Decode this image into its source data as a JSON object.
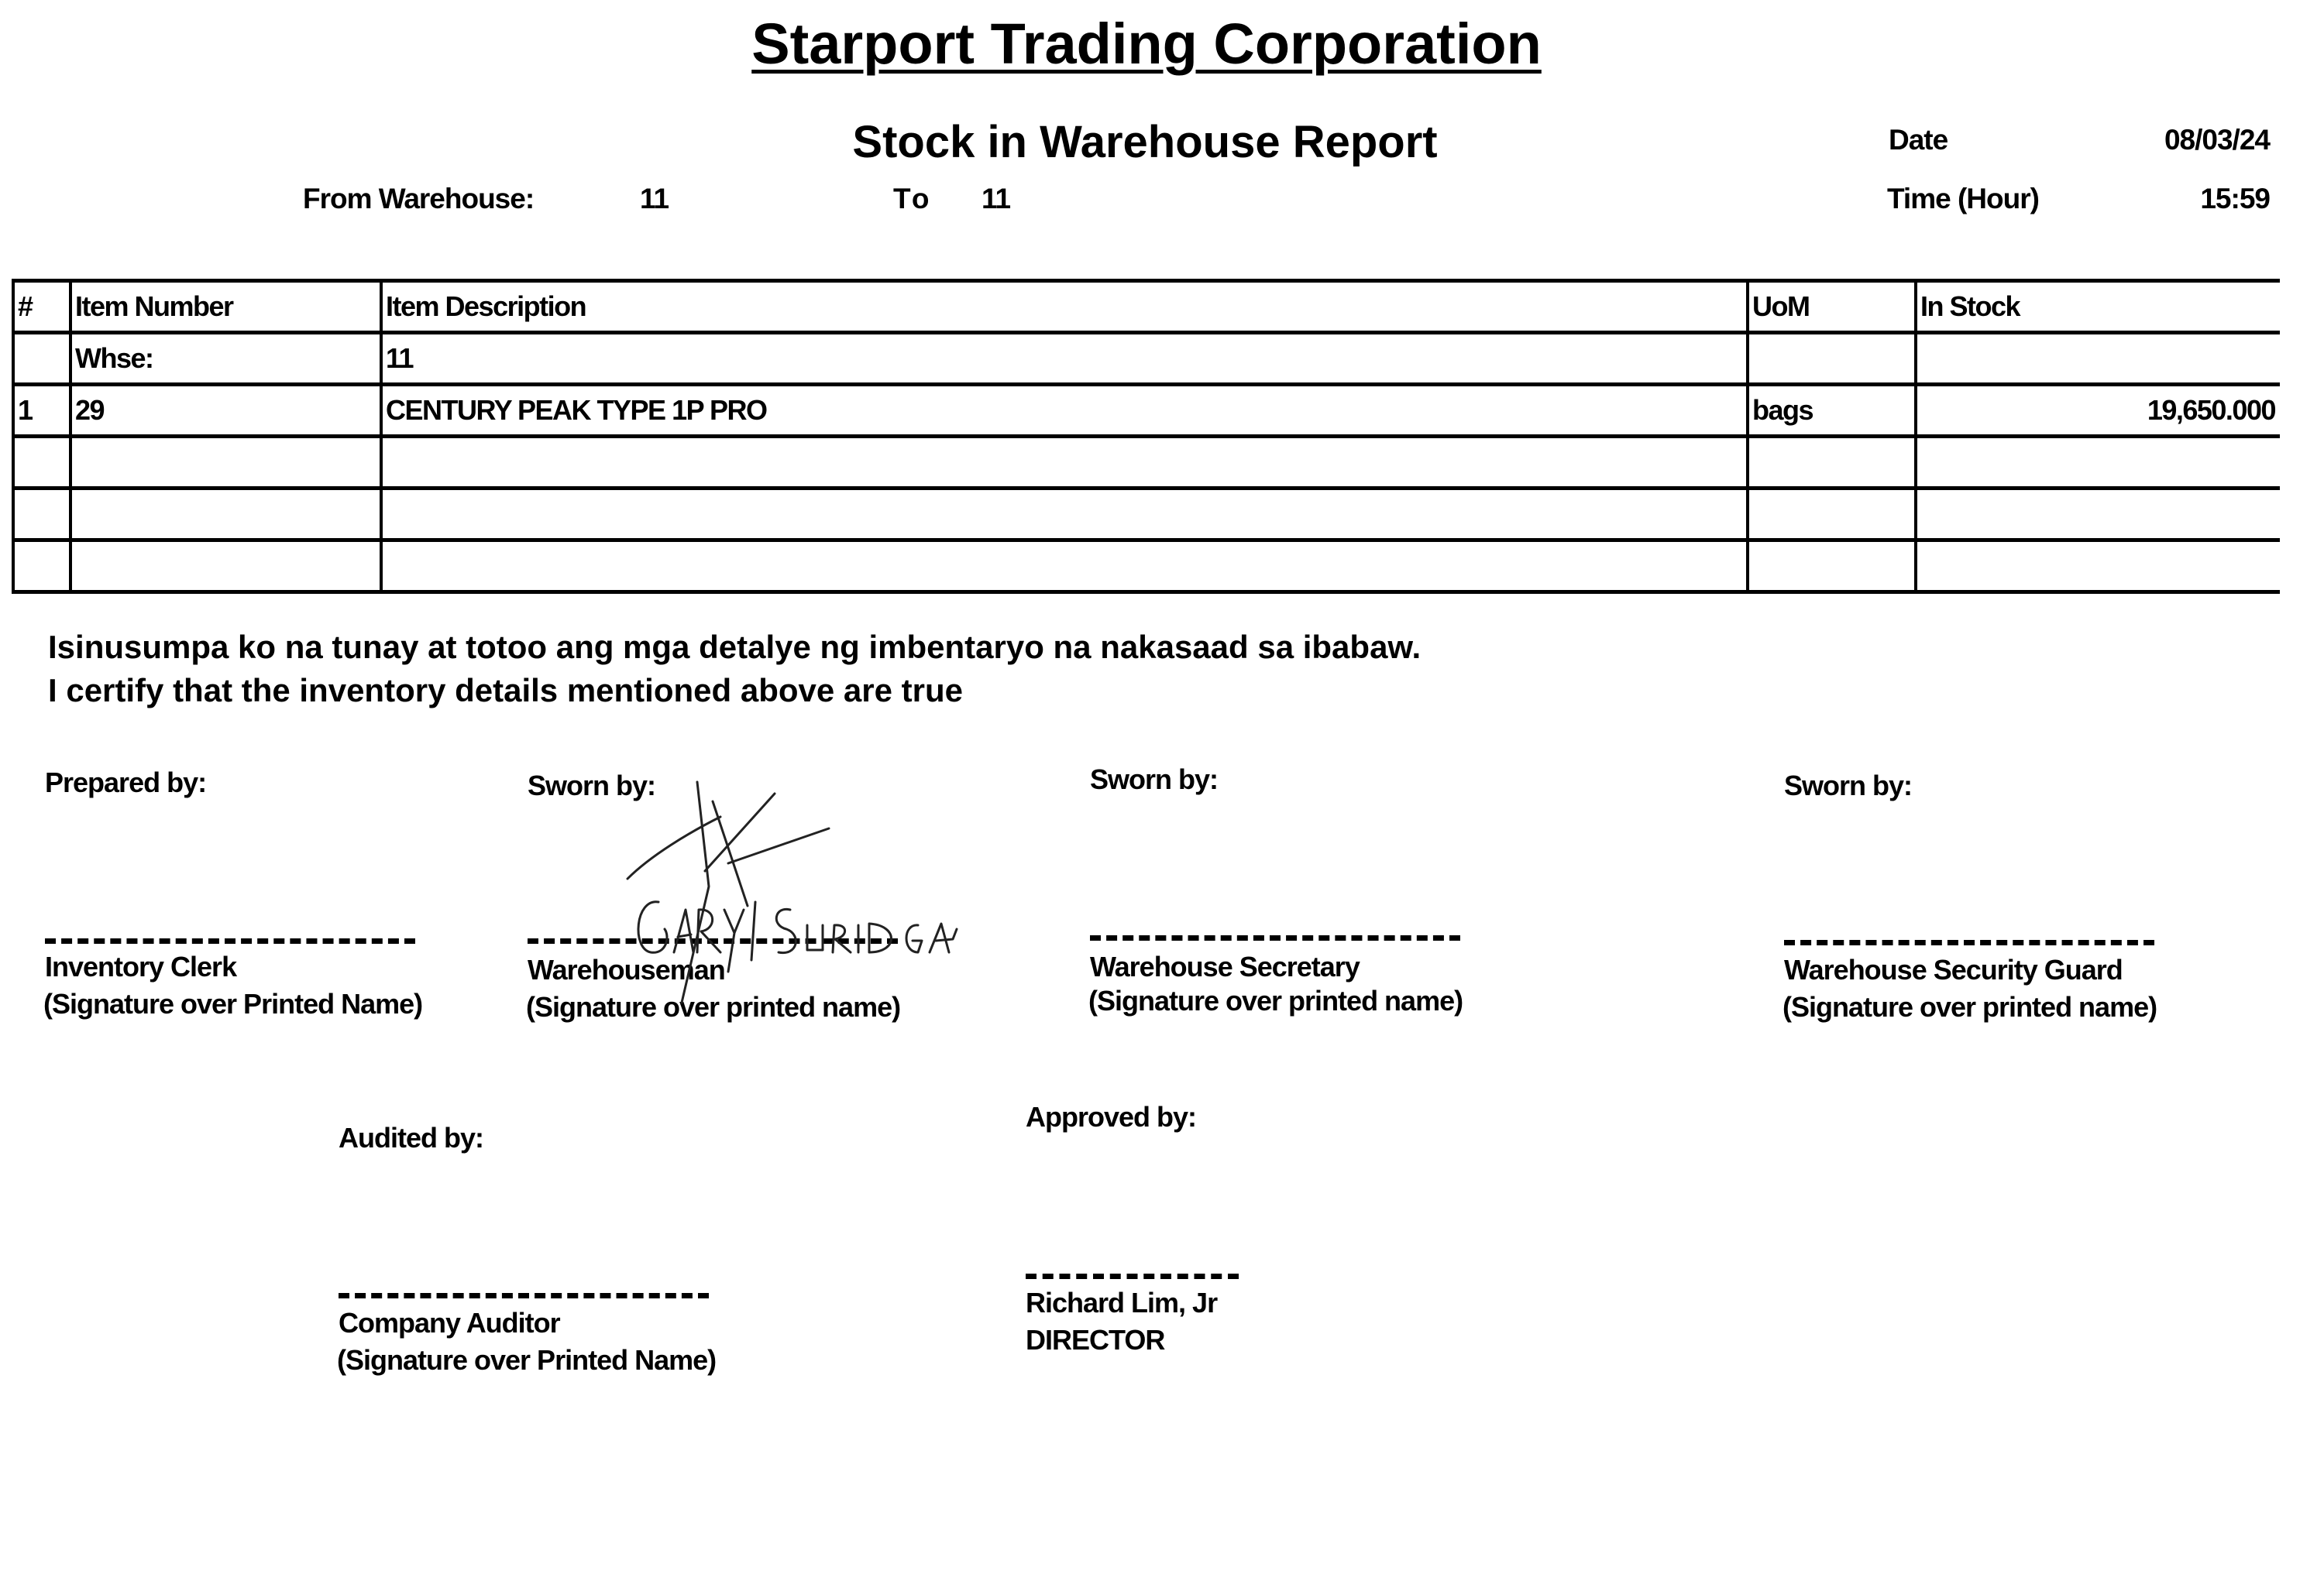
{
  "header": {
    "company": "Starport Trading Corporation",
    "report_title": "Stock in Warehouse Report",
    "date_label": "Date",
    "date_value": "08/03/24",
    "time_label": "Time (Hour)",
    "time_value": "15:59",
    "from_label": "From Warehouse:",
    "from_value": "11",
    "to_label": "To",
    "to_value": "11"
  },
  "table": {
    "columns": [
      "#",
      "Item Number",
      "Item Description",
      "UoM",
      "In Stock"
    ],
    "warehouse_row": {
      "label": "Whse:",
      "value": "11"
    },
    "rows": [
      {
        "no": "1",
        "item_number": "29",
        "description": "CENTURY PEAK TYPE 1P PRO",
        "uom": "bags",
        "in_stock": "19,650.000"
      }
    ]
  },
  "certification": {
    "tagalog": "Isinusumpa ko na tunay at totoo ang mga detalye ng imbentaryo na nakasaad sa ibabaw.",
    "english": "I certify that the inventory details mentioned above are true"
  },
  "signatories": [
    {
      "heading": "Prepared by:",
      "role": "Inventory Clerk",
      "note": "(Signature over Printed Name)"
    },
    {
      "heading": "Sworn by:",
      "role": "Warehouseman",
      "note": "(Signature over printed name)",
      "signature": "Gary Suriaga"
    },
    {
      "heading": "Sworn by:",
      "role": "Warehouse Secretary",
      "note": "(Signature over printed name)"
    },
    {
      "heading": "Sworn by:",
      "role": "Warehouse Security Guard",
      "note": "(Signature over printed name)"
    },
    {
      "heading": "Audited by:",
      "role": "Company Auditor",
      "note": "(Signature over Printed Name)"
    },
    {
      "heading": "Approved by:",
      "role": "Richard Lim, Jr",
      "note": "DIRECTOR"
    }
  ]
}
